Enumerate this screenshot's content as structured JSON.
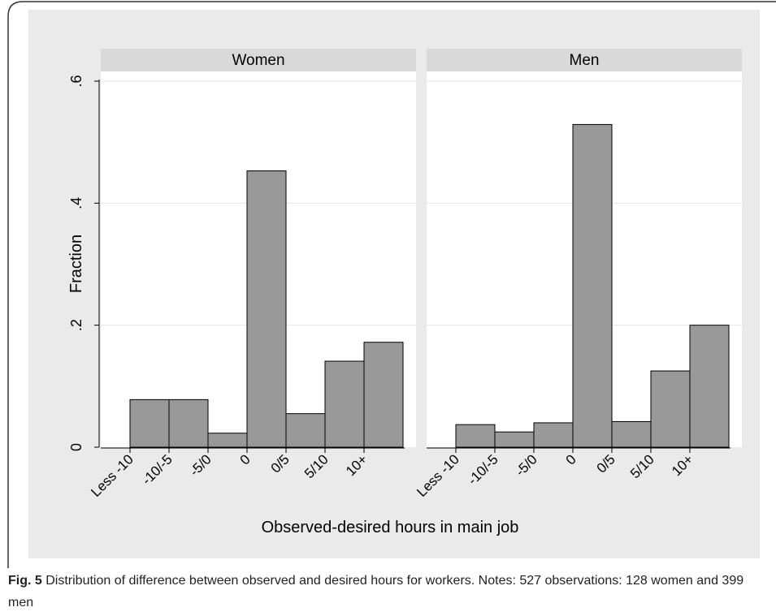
{
  "chart_data": [
    {
      "type": "bar",
      "title": "Women",
      "categories": [
        "Less -10",
        "-10/-5",
        "-5/0",
        "0",
        "0/5",
        "5/10",
        "10+"
      ],
      "values": [
        0.078,
        0.078,
        0.023,
        0.453,
        0.055,
        0.141,
        0.172
      ],
      "color": "#999999",
      "ylim": [
        0,
        0.616
      ],
      "yticks": [
        0,
        {
          "value": 0.2,
          "label": ".2"
        },
        {
          "value": 0.4,
          "label": ".4"
        },
        {
          "value": 0.6,
          "label": ".6"
        }
      ],
      "grid": true
    },
    {
      "type": "bar",
      "title": "Men",
      "categories": [
        "Less -10",
        "-10/-5",
        "-5/0",
        "0",
        "0/5",
        "5/10",
        "10+"
      ],
      "values": [
        0.037,
        0.025,
        0.04,
        0.529,
        0.042,
        0.125,
        0.2
      ],
      "color": "#999999",
      "ylim": [
        0,
        0.616
      ],
      "yticks": [
        0,
        {
          "value": 0.2,
          "label": ".2"
        },
        {
          "value": 0.4,
          "label": ".4"
        },
        {
          "value": 0.6,
          "label": ".6"
        }
      ],
      "grid": true
    }
  ],
  "axes": {
    "ylabel": "Fraction",
    "xlabel": "Observed-desired hours in main job"
  },
  "caption": {
    "label": "Fig. 5",
    "text": "Distribution of difference between observed and desired hours for workers. Notes: 527 observations: 128 women and 399 men"
  }
}
